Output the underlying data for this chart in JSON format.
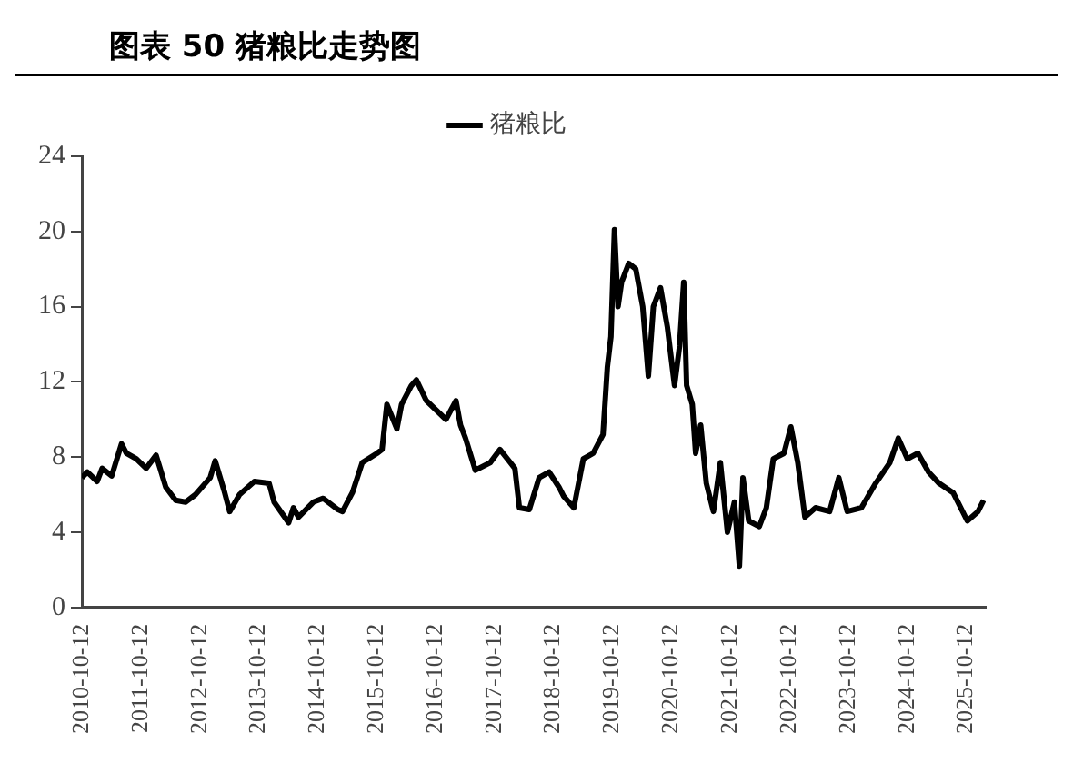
{
  "chart_data": {
    "type": "line",
    "title": "图表 50 猪粮比走势图",
    "x": [
      "2010-10-12",
      "2010-11",
      "2011-01",
      "2011-02",
      "2011-04",
      "2011-06",
      "2011-07",
      "2011-09",
      "2011-11",
      "2012-01",
      "2012-03",
      "2012-05",
      "2012-07",
      "2012-09",
      "2012-12",
      "2013-01",
      "2013-03",
      "2013-04",
      "2013-06",
      "2013-09",
      "2013-12",
      "2014-01",
      "2014-04",
      "2014-05",
      "2014-06",
      "2014-09",
      "2014-11",
      "2015-02",
      "2015-03",
      "2015-05",
      "2015-07",
      "2015-10",
      "2015-11",
      "2015-12",
      "2016-02",
      "2016-03",
      "2016-05",
      "2016-06",
      "2016-08",
      "2016-12",
      "2017-02",
      "2017-03",
      "2017-04",
      "2017-06",
      "2017-09",
      "2017-11",
      "2018-02",
      "2018-03",
      "2018-05",
      "2018-07",
      "2018-09",
      "2018-11",
      "2018-12",
      "2019-02",
      "2019-04",
      "2019-06",
      "2019-08",
      "2019-09-11",
      "2019-10-03",
      "2019-10-25",
      "2019-11-16",
      "2019-12-08",
      "2020-01-21",
      "2020-03-05",
      "2020-04-17",
      "2020-05-22",
      "2020-06-22",
      "2020-08-05",
      "2020-09-17",
      "2020-10-31",
      "2020-12-01",
      "2020-12-27",
      "2021-01-14",
      "2021-02-18",
      "2021-03-11",
      "2021-04-11",
      "2021-05-16",
      "2021-06-29",
      "2021-08-11",
      "2021-09-24",
      "2021-11-06",
      "2021-12-07",
      "2021-12-29",
      "2022-02-03",
      "2022-04-09",
      "2022-05-23",
      "2022-07-05",
      "2022-09-09",
      "2022-10-22",
      "2022-12-04",
      "2023-01-17",
      "2023-03-24",
      "2023-06-19",
      "2023-08-15",
      "2023-10-06",
      "2024-01-02",
      "2024-03-30",
      "2024-06-26",
      "2024-08-17",
      "2024-10-13",
      "2024-12-17",
      "2025-02-21",
      "2025-04-27",
      "2025-07-23",
      "2025-10-19",
      "2025-12-24",
      "2026-01-28"
    ],
    "series": [
      {
        "name": "猪粮比",
        "color": "#000000",
        "values": [
          6.9,
          7.2,
          6.7,
          7.4,
          7.0,
          8.7,
          8.2,
          7.9,
          7.4,
          8.1,
          6.4,
          5.7,
          5.6,
          6.0,
          6.9,
          7.8,
          6.1,
          5.1,
          6.0,
          6.7,
          6.6,
          5.6,
          4.5,
          5.3,
          4.8,
          5.6,
          5.8,
          5.2,
          5.1,
          6.1,
          7.7,
          8.2,
          8.4,
          10.8,
          9.5,
          10.8,
          11.8,
          12.1,
          11.0,
          10.0,
          11.0,
          9.7,
          9.0,
          7.3,
          7.7,
          8.4,
          7.4,
          5.3,
          5.2,
          6.9,
          7.2,
          6.4,
          5.9,
          5.3,
          7.9,
          8.2,
          9.2,
          12.8,
          14.4,
          20.1,
          16.0,
          17.3,
          18.3,
          18.0,
          16.0,
          12.3,
          16.0,
          17.0,
          14.9,
          11.8,
          13.9,
          17.3,
          11.8,
          10.8,
          8.2,
          9.7,
          6.6,
          5.1,
          7.7,
          4.0,
          5.6,
          2.2,
          6.9,
          4.6,
          4.3,
          5.3,
          7.9,
          8.2,
          9.6,
          7.7,
          4.8,
          5.3,
          5.1,
          6.9,
          5.1,
          5.3,
          6.6,
          7.7,
          9.0,
          7.9,
          8.2,
          7.2,
          6.6,
          6.1,
          4.6,
          5.1,
          5.7
        ]
      }
    ],
    "xlim": [
      "2010-10-12",
      "2026-02-10"
    ],
    "xticks": [
      "2010-10-12",
      "2011-10-12",
      "2012-10-12",
      "2013-10-12",
      "2014-10-12",
      "2015-10-12",
      "2016-10-12",
      "2017-10-12",
      "2018-10-12",
      "2019-10-12",
      "2020-10-12",
      "2021-10-12",
      "2022-10-12",
      "2023-10-12",
      "2024-10-12",
      "2025-10-12"
    ],
    "ylim": [
      0,
      24
    ],
    "yticks": [
      0,
      4,
      8,
      12,
      16,
      20,
      24
    ],
    "grid": false,
    "legend": "top",
    "marker": "none",
    "line_style": "solid"
  }
}
